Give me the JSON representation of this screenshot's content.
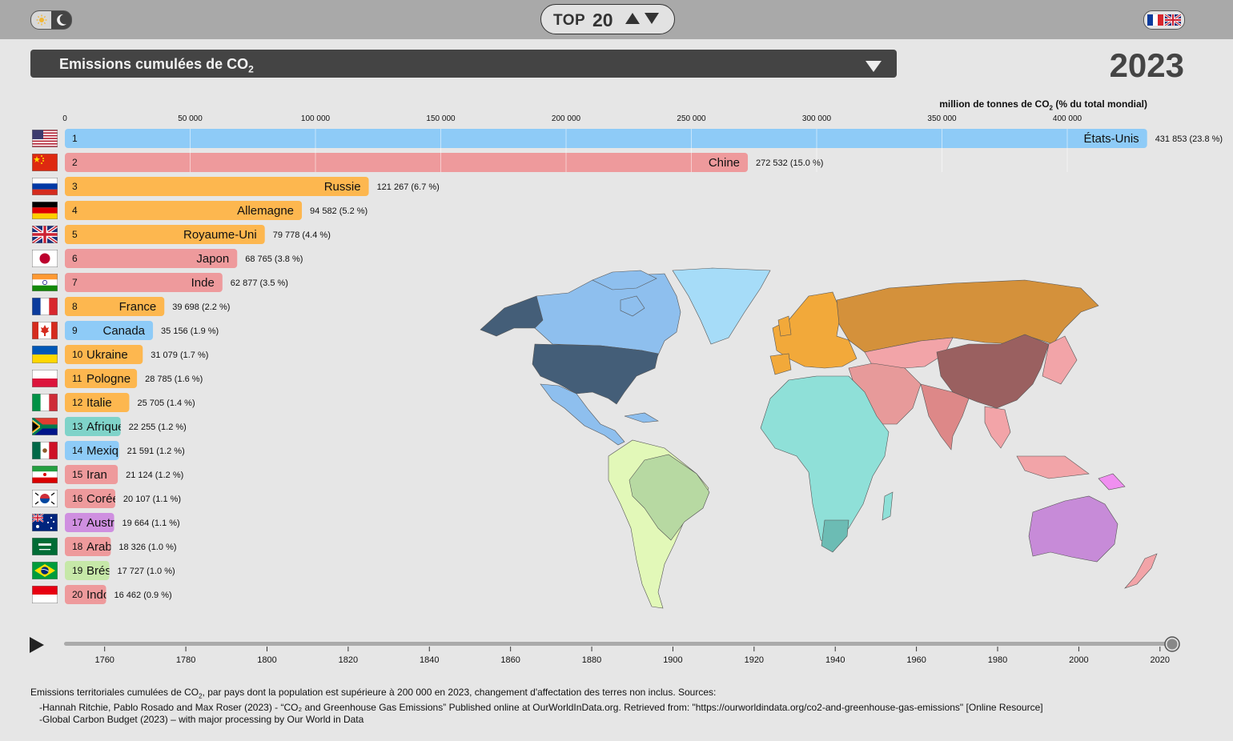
{
  "header": {
    "top_label": "TOP",
    "top_count": "20"
  },
  "metric": {
    "title_main": "Emissions cumulées de CO",
    "title_sub": "2",
    "year": "2023",
    "unit_main": "million de tonnes de CO",
    "unit_sub": "2",
    "unit_suffix": " (% du total mondial)"
  },
  "chart_data": {
    "type": "bar",
    "orientation": "horizontal",
    "xlim": [
      0,
      450000
    ],
    "x_ticks": [
      0,
      50000,
      100000,
      150000,
      200000,
      250000,
      300000,
      350000,
      400000
    ],
    "x_tick_labels": [
      "0",
      "50 000",
      "100 000",
      "150 000",
      "200 000",
      "250 000",
      "300 000",
      "350 000",
      "400 000"
    ],
    "categories": [
      "États-Unis",
      "Chine",
      "Russie",
      "Allemagne",
      "Royaume-Uni",
      "Japon",
      "Inde",
      "France",
      "Canada",
      "Ukraine",
      "Pologne",
      "Italie",
      "Afrique du Sud",
      "Mexique",
      "Iran",
      "Corée du Sud",
      "Australie",
      "Arabie saoudite",
      "Brésil",
      "Indonésie"
    ],
    "values": [
      431853,
      272532,
      121267,
      94582,
      79778,
      68765,
      62877,
      39698,
      35156,
      31079,
      28785,
      25705,
      22255,
      21591,
      21124,
      20107,
      19664,
      18326,
      17727,
      16462
    ],
    "value_labels": [
      "431 853 (23.8 %)",
      "272 532 (15.0 %)",
      "121 267 (6.7 %)",
      "94 582 (5.2 %)",
      "79 778 (4.4 %)",
      "68 765 (3.8 %)",
      "62 877 (3.5 %)",
      "39 698 (2.2 %)",
      "35 156 (1.9 %)",
      "31 079 (1.7 %)",
      "28 785 (1.6 %)",
      "25 705 (1.4 %)",
      "22 255 (1.2 %)",
      "21 591 (1.2 %)",
      "21 124 (1.2 %)",
      "20 107 (1.1 %)",
      "19 664 (1.1 %)",
      "18 326 (1.0 %)",
      "17 727 (1.0 %)",
      "16 462 (0.9 %)"
    ],
    "colors": [
      "#8ecbf7",
      "#ee9a9c",
      "#fdb74f",
      "#fdb74f",
      "#fdb74f",
      "#ee9a9c",
      "#ee9a9c",
      "#fdb74f",
      "#8ecbf7",
      "#fdb74f",
      "#fdb74f",
      "#fdb74f",
      "#7fd3c9",
      "#8ecbf7",
      "#ee9a9c",
      "#ee9a9c",
      "#cf8fe0",
      "#ee9a9c",
      "#c6e8a8",
      "#ee9a9c"
    ],
    "flags": [
      "us",
      "cn",
      "ru",
      "de",
      "gb",
      "jp",
      "in",
      "fr",
      "ca",
      "ua",
      "pl",
      "it",
      "za",
      "mx",
      "ir",
      "kr",
      "au",
      "sa",
      "br",
      "id"
    ]
  },
  "timeline": {
    "ticks": [
      "1760",
      "1780",
      "1800",
      "1820",
      "1840",
      "1860",
      "1880",
      "1900",
      "1920",
      "1940",
      "1960",
      "1980",
      "2000",
      "2020"
    ],
    "range": [
      1750,
      2023
    ],
    "current": 2023
  },
  "footer": {
    "line1_a": "Emissions territoriales cumulées de CO",
    "line1_sub": "2",
    "line1_b": ", par pays dont la population est supérieure à 200 000 en 2023, changement d'affectation des terres non inclus. Sources:",
    "line2": "-Hannah Ritchie, Pablo Rosado and Max Roser (2023) - “CO₂ and Greenhouse Gas Emissions” Published online at OurWorldInData.org. Retrieved from: \"https://ourworldindata.org/co2-and-greenhouse-gas-emissions\" [Online Resource]",
    "line3": "-Global Carbon Budget (2023) – with major processing by Our World in Data"
  },
  "map_colors": {
    "north_america": "#8ebfee",
    "usa": "#445e78",
    "greenland": "#a6dcf8",
    "europe": "#f2a93a",
    "russia": "#d4913b",
    "africa": "#8fe0d8",
    "south_africa": "#6cbcb4",
    "middle_east": "#e79a9a",
    "asia": "#f2a4a8",
    "china": "#9a6060",
    "india": "#dd8888",
    "south_america": "#e2f8b8",
    "brazil": "#b7d9a2",
    "australia": "#c78bd8"
  }
}
